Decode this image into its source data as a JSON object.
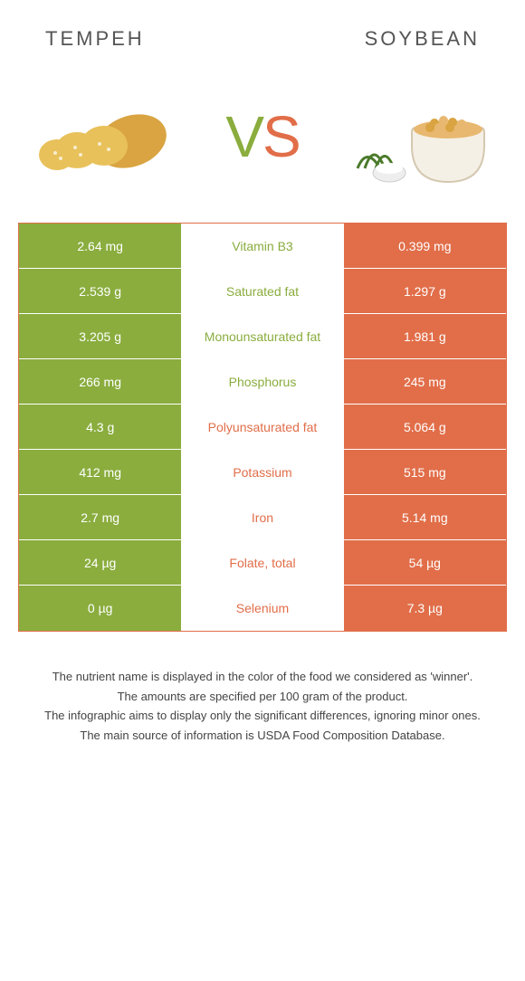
{
  "header": {
    "left_title": "Tempeh",
    "right_title": "Soybean"
  },
  "vs": {
    "v": "V",
    "s": "S"
  },
  "colors": {
    "tempeh": "#8aad3e",
    "soybean": "#e16e49",
    "neutral_bg": "#ffffff",
    "text_white": "#ffffff"
  },
  "table": {
    "rows": [
      {
        "left": "2.64 mg",
        "label": "Vitamin B3",
        "right": "0.399 mg",
        "winner": "left"
      },
      {
        "left": "2.539 g",
        "label": "Saturated fat",
        "right": "1.297 g",
        "winner": "left"
      },
      {
        "left": "3.205 g",
        "label": "Monounsaturated fat",
        "right": "1.981 g",
        "winner": "left"
      },
      {
        "left": "266 mg",
        "label": "Phosphorus",
        "right": "245 mg",
        "winner": "left"
      },
      {
        "left": "4.3 g",
        "label": "Polyunsaturated fat",
        "right": "5.064 g",
        "winner": "right"
      },
      {
        "left": "412 mg",
        "label": "Potassium",
        "right": "515 mg",
        "winner": "right"
      },
      {
        "left": "2.7 mg",
        "label": "Iron",
        "right": "5.14 mg",
        "winner": "right"
      },
      {
        "left": "24 µg",
        "label": "Folate, total",
        "right": "54 µg",
        "winner": "right"
      },
      {
        "left": "0 µg",
        "label": "Selenium",
        "right": "7.3 µg",
        "winner": "right"
      }
    ]
  },
  "footnote": {
    "line1": "The nutrient name is displayed in the color of the food we considered as 'winner'.",
    "line2": "The amounts are specified per 100 gram of the product.",
    "line3": "The infographic aims to display only the significant differences, ignoring minor ones.",
    "line4": "The main source of information is USDA Food Composition Database."
  }
}
